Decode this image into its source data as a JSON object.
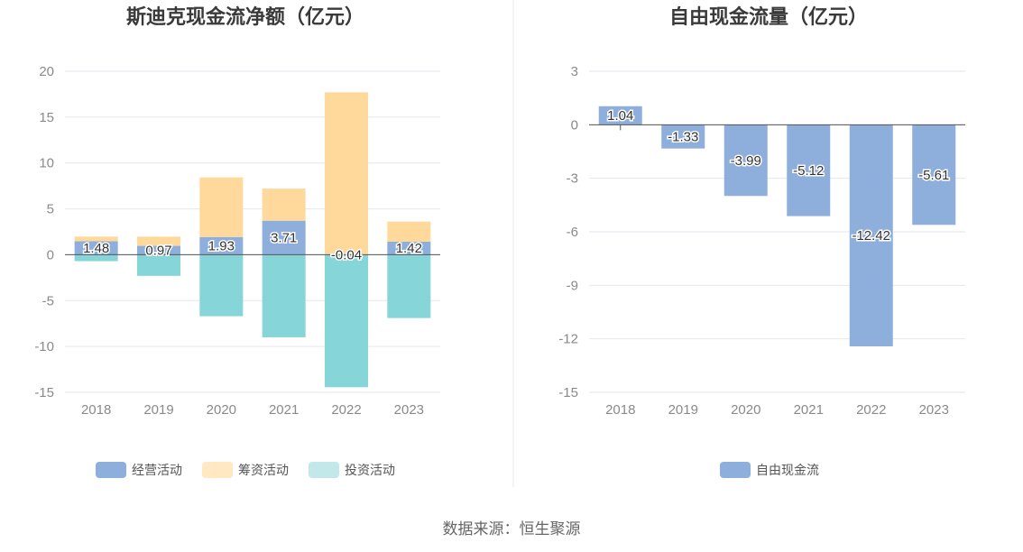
{
  "footer": {
    "source": "数据来源：恒生聚源"
  },
  "colors": {
    "operating": "#8eaedb",
    "financing": "#ffd99b",
    "investing": "#86d5d8",
    "financing_legend": "#ffe8c2",
    "investing_legend": "#c2e8ea",
    "free_cash_flow": "#8eaedb",
    "grid": "#e6e6ee",
    "axis": "#555555"
  },
  "chart_data": [
    {
      "type": "bar",
      "stacked": true,
      "title": "斯迪克现金流净额（亿元）",
      "categories": [
        "2018",
        "2019",
        "2020",
        "2021",
        "2022",
        "2023"
      ],
      "ylim": [
        -15,
        20
      ],
      "yticks": [
        -15,
        -10,
        -5,
        0,
        5,
        10,
        15,
        20
      ],
      "grid": true,
      "legend": "bottom",
      "series": [
        {
          "name": "经营活动",
          "values": [
            1.48,
            0.97,
            1.93,
            3.71,
            -0.04,
            1.42
          ],
          "labeled": true
        },
        {
          "name": "筹资活动",
          "values": [
            0.5,
            1.0,
            6.5,
            3.5,
            17.7,
            2.2
          ]
        },
        {
          "name": "投资活动",
          "values": [
            -0.7,
            -2.3,
            -6.7,
            -9.0,
            -14.4,
            -6.9
          ]
        }
      ],
      "data_labels": [
        "1.48",
        "0.97",
        "1.93",
        "3.71",
        "-0.04",
        "1.42"
      ]
    },
    {
      "type": "bar",
      "title": "自由现金流量（亿元）",
      "categories": [
        "2018",
        "2019",
        "2020",
        "2021",
        "2022",
        "2023"
      ],
      "ylim": [
        -15,
        3
      ],
      "yticks": [
        -15,
        -12,
        -9,
        -6,
        -3,
        0,
        3
      ],
      "grid": true,
      "legend": "bottom",
      "series": [
        {
          "name": "自由现金流",
          "values": [
            1.04,
            -1.33,
            -3.99,
            -5.12,
            -12.42,
            -5.61
          ]
        }
      ],
      "data_labels": [
        "1.04",
        "-1.33",
        "-3.99",
        "-5.12",
        "-12.42",
        "-5.61"
      ]
    }
  ]
}
